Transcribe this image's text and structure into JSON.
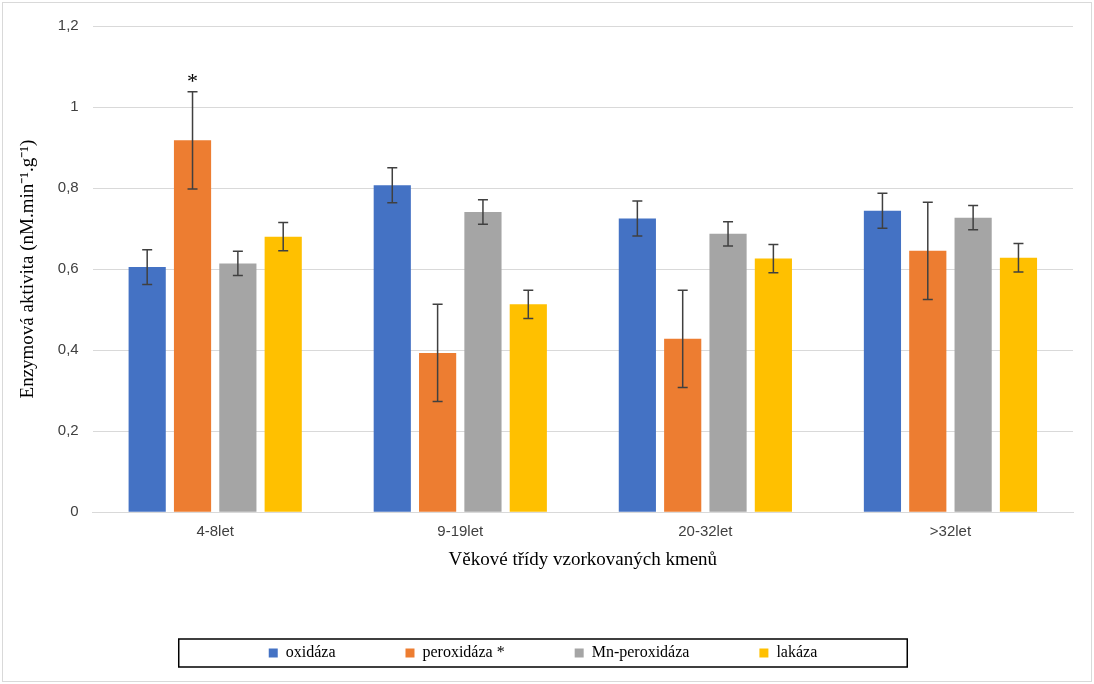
{
  "chart_data": {
    "type": "bar",
    "xlabel": "Věkové třídy vzorkovaných kmenů",
    "ylabel": "Enzymová aktivita (nM.min⁻¹.g⁻¹)",
    "categories": [
      "4-8let",
      "9-19let",
      "20-32let",
      ">32let"
    ],
    "series": [
      {
        "name": "oxidáza",
        "color": "#4472c4",
        "values": [
          0.605,
          0.807,
          0.725,
          0.744
        ],
        "errors": [
          0.043,
          0.043,
          0.043,
          0.043
        ]
      },
      {
        "name": "peroxidáza *",
        "color": "#ed7d31",
        "values": [
          0.918,
          0.393,
          0.428,
          0.645
        ],
        "errors": [
          0.12,
          0.12,
          0.12,
          0.12
        ]
      },
      {
        "name": "Mn-peroxidáza",
        "color": "#a5a5a5",
        "values": [
          0.614,
          0.741,
          0.687,
          0.727
        ],
        "errors": [
          0.03,
          0.03,
          0.03,
          0.03
        ]
      },
      {
        "name": "lakáza",
        "color": "#ffc000",
        "values": [
          0.68,
          0.513,
          0.626,
          0.628
        ],
        "errors": [
          0.035,
          0.035,
          0.035,
          0.035
        ]
      }
    ],
    "ylim": [
      0,
      1.2
    ],
    "yticks": [
      0,
      {
        "value": 0.2,
        "label": "0,2"
      },
      {
        "value": 0.4,
        "label": "0,4"
      },
      {
        "value": 0.6,
        "label": "0,6"
      },
      {
        "value": 0.8,
        "label": "0,8"
      },
      1,
      {
        "value": 1.2,
        "label": "1,2"
      }
    ],
    "annotations": [
      "*"
    ],
    "grid": "y",
    "legend": "bottom"
  }
}
